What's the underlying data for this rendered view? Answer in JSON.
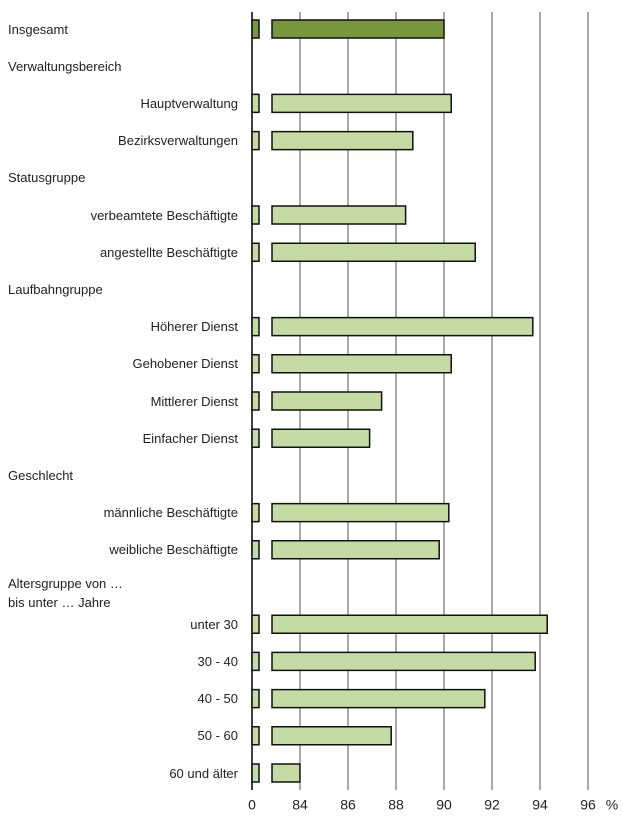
{
  "chart_data": {
    "type": "bar",
    "orientation": "horizontal",
    "categories": [
      "Insgesamt",
      "Verwaltungsbereich",
      "Hauptverwaltung",
      "Bezirksverwaltungen",
      "Statusgruppe",
      "verbeamtete Beschäftigte",
      "angestellte Beschäftigte",
      "Laufbahngruppe",
      "Höherer Dienst",
      "Gehobener Dienst",
      "Mittlerer Dienst",
      "Einfacher Dienst",
      "Geschlecht",
      "männliche Beschäftigte",
      "weibliche Beschäftigte",
      "Altersgruppe von …\nbis unter … Jahre",
      "unter 30",
      "30 - 40",
      "40 - 50",
      "50 - 60",
      "60 und älter"
    ],
    "values": [
      90.0,
      null,
      90.3,
      88.7,
      null,
      88.4,
      91.3,
      null,
      93.7,
      90.3,
      87.4,
      86.9,
      null,
      90.2,
      89.8,
      null,
      94.3,
      93.8,
      91.7,
      87.8,
      83.9
    ],
    "colors": [
      "#77973d",
      null,
      "#c5dba4",
      "#c5dba4",
      null,
      "#c5dba4",
      "#c5dba4",
      null,
      "#c5dba4",
      "#c5dba4",
      "#c5dba4",
      "#c5dba4",
      null,
      "#c5dba4",
      "#c5dba4",
      null,
      "#c5dba4",
      "#c5dba4",
      "#c5dba4",
      "#c5dba4",
      "#c5dba4"
    ],
    "xlim": [
      0,
      96
    ],
    "xbreak": [
      0,
      84
    ],
    "xticks": [
      0,
      84,
      86,
      88,
      90,
      92,
      94,
      96
    ],
    "xlabel": "%",
    "grid": true
  }
}
